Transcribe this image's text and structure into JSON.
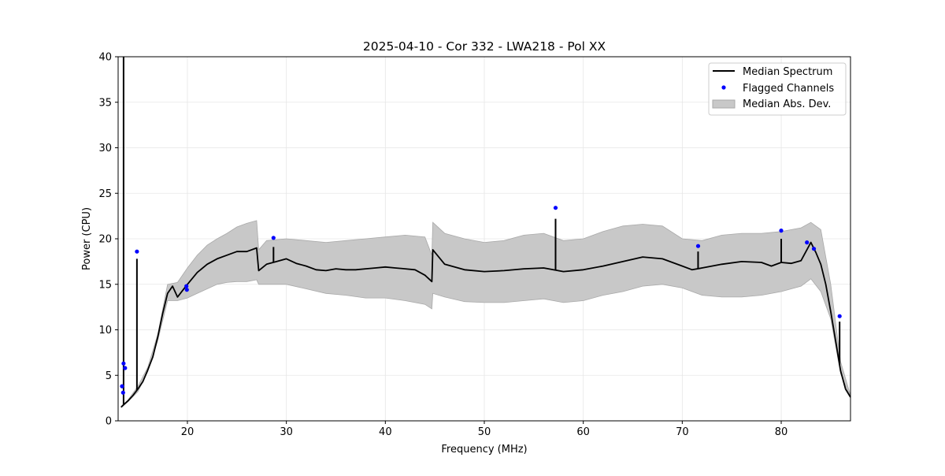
{
  "chart_data": {
    "type": "line",
    "title": "2025-04-10 - Cor 332 - LWA218 - Pol XX",
    "xlabel": "Frequency (MHz)",
    "ylabel": "Power (CPU)",
    "xlim": [
      13.0,
      87.0
    ],
    "ylim": [
      0,
      40
    ],
    "xticks": [
      20,
      30,
      40,
      50,
      60,
      70,
      80
    ],
    "yticks": [
      0,
      5,
      10,
      15,
      20,
      25,
      30,
      35,
      40
    ],
    "grid": true,
    "legend_position": "top-right",
    "legend": [
      {
        "label": "Median Spectrum",
        "kind": "line",
        "color": "#000000"
      },
      {
        "label": "Flagged Channels",
        "kind": "dot",
        "color": "#0000ff"
      },
      {
        "label": "Median Abs. Dev.",
        "kind": "patch",
        "color": "#c8c8c8"
      }
    ],
    "series": [
      {
        "name": "Median Spectrum",
        "color": "#000000",
        "x": [
          13.3,
          13.6,
          14.0,
          14.5,
          15.0,
          15.5,
          16.0,
          16.5,
          17.0,
          17.5,
          18.0,
          18.5,
          19.0,
          19.5,
          20.0,
          21.0,
          22.0,
          23.0,
          24.0,
          25.0,
          26.0,
          27.0,
          27.2,
          28.0,
          29.0,
          30.0,
          31.0,
          32.0,
          33.0,
          34.0,
          35.0,
          36.0,
          37.0,
          38.0,
          39.0,
          40.0,
          41.0,
          42.0,
          43.0,
          44.0,
          44.7,
          44.8,
          46.0,
          48.0,
          50.0,
          52.0,
          54.0,
          56.0,
          58.0,
          60.0,
          62.0,
          64.0,
          66.0,
          68.0,
          70.0,
          71.0,
          72.0,
          74.0,
          76.0,
          78.0,
          79.0,
          80.0,
          81.0,
          82.0,
          83.0,
          83.5,
          84.0,
          84.5,
          85.0,
          85.5,
          86.0,
          86.5,
          87.0
        ],
        "y": [
          1.5,
          1.8,
          2.2,
          2.8,
          3.5,
          4.3,
          5.6,
          7.0,
          9.2,
          11.8,
          14.0,
          14.8,
          13.6,
          14.3,
          15.0,
          16.3,
          17.2,
          17.8,
          18.2,
          18.6,
          18.6,
          19.0,
          16.5,
          17.2,
          17.5,
          17.8,
          17.3,
          17.0,
          16.6,
          16.5,
          16.7,
          16.6,
          16.6,
          16.7,
          16.8,
          16.9,
          16.8,
          16.7,
          16.6,
          16.0,
          15.3,
          18.8,
          17.2,
          16.6,
          16.4,
          16.5,
          16.7,
          16.8,
          16.4,
          16.6,
          17.0,
          17.5,
          18.0,
          17.8,
          17.0,
          16.6,
          16.8,
          17.2,
          17.5,
          17.4,
          17.0,
          17.4,
          17.3,
          17.6,
          19.6,
          18.5,
          17.2,
          15.0,
          12.0,
          8.8,
          5.5,
          3.5,
          2.6
        ]
      },
      {
        "name": "Median Abs. Dev.",
        "color": "#c8c8c8",
        "x": [
          13.3,
          14.0,
          15.0,
          16.0,
          17.0,
          18.0,
          19.0,
          20.0,
          21.0,
          22.0,
          23.0,
          24.0,
          25.0,
          26.0,
          27.0,
          27.2,
          28.0,
          30.0,
          32.0,
          34.0,
          36.0,
          38.0,
          40.0,
          42.0,
          44.0,
          44.7,
          44.8,
          46.0,
          48.0,
          50.0,
          52.0,
          54.0,
          56.0,
          58.0,
          60.0,
          62.0,
          64.0,
          66.0,
          68.0,
          70.0,
          72.0,
          74.0,
          76.0,
          78.0,
          80.0,
          82.0,
          83.0,
          84.0,
          85.0,
          86.0,
          87.0
        ],
        "lower": [
          1.5,
          2.1,
          3.2,
          5.4,
          8.8,
          13.2,
          13.2,
          13.5,
          14.0,
          14.5,
          15.0,
          15.2,
          15.3,
          15.3,
          15.5,
          15.0,
          15.0,
          15.0,
          14.5,
          14.0,
          13.8,
          13.5,
          13.5,
          13.2,
          12.8,
          12.3,
          14.0,
          13.6,
          13.1,
          13.0,
          13.0,
          13.2,
          13.4,
          13.0,
          13.2,
          13.8,
          14.2,
          14.8,
          15.0,
          14.6,
          13.8,
          13.6,
          13.6,
          13.8,
          14.2,
          14.8,
          15.6,
          14.2,
          11.2,
          5.2,
          2.6
        ],
        "upper": [
          1.6,
          2.3,
          3.8,
          5.9,
          9.5,
          15.0,
          15.2,
          16.8,
          18.2,
          19.3,
          20.0,
          20.6,
          21.3,
          21.7,
          22.0,
          18.8,
          19.8,
          20.0,
          19.8,
          19.6,
          19.8,
          20.0,
          20.2,
          20.4,
          20.2,
          18.2,
          21.8,
          20.6,
          20.0,
          19.6,
          19.8,
          20.4,
          20.6,
          19.8,
          20.0,
          20.8,
          21.4,
          21.6,
          21.4,
          20.0,
          19.8,
          20.4,
          20.6,
          20.6,
          20.8,
          21.2,
          21.8,
          21.0,
          15.0,
          6.5,
          2.8
        ]
      }
    ],
    "spikes": [
      {
        "x": 13.55,
        "y": 40.0
      },
      {
        "x": 14.9,
        "y": 17.8
      },
      {
        "x": 28.7,
        "y": 19.1
      },
      {
        "x": 57.2,
        "y": 22.2
      },
      {
        "x": 71.6,
        "y": 18.6
      },
      {
        "x": 80.0,
        "y": 20.0
      },
      {
        "x": 85.9,
        "y": 10.9
      }
    ],
    "flagged_channels": [
      {
        "x": 13.4,
        "y": 3.8
      },
      {
        "x": 13.5,
        "y": 3.1
      },
      {
        "x": 13.55,
        "y": 6.3
      },
      {
        "x": 13.7,
        "y": 5.8
      },
      {
        "x": 14.9,
        "y": 18.6
      },
      {
        "x": 19.9,
        "y": 14.8
      },
      {
        "x": 19.95,
        "y": 14.4
      },
      {
        "x": 28.7,
        "y": 20.1
      },
      {
        "x": 57.2,
        "y": 23.4
      },
      {
        "x": 71.6,
        "y": 19.2
      },
      {
        "x": 80.0,
        "y": 20.9
      },
      {
        "x": 82.6,
        "y": 19.6
      },
      {
        "x": 83.3,
        "y": 18.9
      },
      {
        "x": 85.9,
        "y": 11.5
      }
    ]
  }
}
